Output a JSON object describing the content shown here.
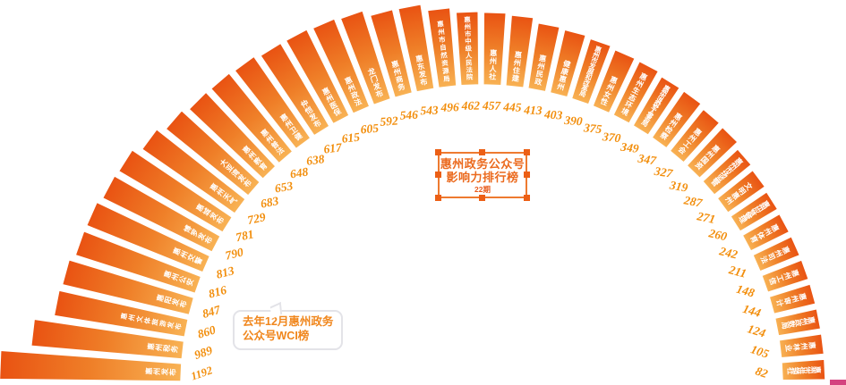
{
  "header": {
    "title_line1": "惠州政务公众号",
    "title_line2": "影响力排行榜",
    "edition": "22期"
  },
  "callout": {
    "line1": "去年12月惠州政务",
    "line2": "公众号WCI榜"
  },
  "colors": {
    "bar_inner": "#F8B254",
    "bar_mid": "#EF7F28",
    "bar_tip": "#E95212",
    "value_text": "#F28E0C",
    "label_text": "#FFFFFF",
    "title_text": "#EB6A1E",
    "frame_border": "#EE7A30",
    "handle": "#EC5F15",
    "callout_text": "#F0861C",
    "callout_border": "#E3E3E8"
  },
  "chart_data": {
    "type": "bar",
    "layout": "radial-fan",
    "title": "惠州政务公众号影响力排行榜",
    "edition": "22期",
    "annotation": "去年12月惠州政务公众号WCI榜",
    "legend_position": "center",
    "grid": false,
    "value_range": [
      0,
      1192
    ],
    "series": [
      {
        "name": "惠州发布",
        "value": 1192
      },
      {
        "name": "惠州税务",
        "value": 989
      },
      {
        "name": "惠州文体旅游发布",
        "value": 860
      },
      {
        "name": "惠阳发布",
        "value": 847
      },
      {
        "name": "惠州公安",
        "value": 816
      },
      {
        "name": "惠州交警",
        "value": 813
      },
      {
        "name": "博罗发布",
        "value": 790
      },
      {
        "name": "惠城发布",
        "value": 781
      },
      {
        "name": "惠州天气",
        "value": 729
      },
      {
        "name": "大亚湾发布",
        "value": 683
      },
      {
        "name": "惠州教育",
        "value": 653
      },
      {
        "name": "惠州普法",
        "value": 648
      },
      {
        "name": "惠州卫健",
        "value": 638
      },
      {
        "name": "仲恺发布",
        "value": 617
      },
      {
        "name": "惠州医保",
        "value": 615
      },
      {
        "name": "惠州政法",
        "value": 605
      },
      {
        "name": "龙门发布",
        "value": 592
      },
      {
        "name": "惠州商务",
        "value": 546
      },
      {
        "name": "惠东发布",
        "value": 543
      },
      {
        "name": "惠州市自然资源局",
        "value": 496
      },
      {
        "name": "惠州市中级人民法院",
        "value": 462
      },
      {
        "name": "惠州人社",
        "value": 457
      },
      {
        "name": "惠州住建",
        "value": 445
      },
      {
        "name": "惠州民政",
        "value": 413
      },
      {
        "name": "健康惠州",
        "value": 403
      },
      {
        "name": "惠州市发展和改革局",
        "value": 390
      },
      {
        "name": "惠州女性",
        "value": 375
      },
      {
        "name": "惠州生态环境",
        "value": 370
      },
      {
        "name": "惠州市退役军人事务局",
        "value": 349
      },
      {
        "name": "惠州检察",
        "value": 347
      },
      {
        "name": "惠州工会",
        "value": 327
      },
      {
        "name": "惠州国资",
        "value": 319
      },
      {
        "name": "惠州市场监管",
        "value": 287
      },
      {
        "name": "文明惠州",
        "value": 271
      },
      {
        "name": "惠州应急管理",
        "value": 260
      },
      {
        "name": "惠州体育",
        "value": 242
      },
      {
        "name": "惠州司法",
        "value": 211
      },
      {
        "name": "惠州工信",
        "value": 148
      },
      {
        "name": "惠州审计",
        "value": 144
      },
      {
        "name": "惠州政数局",
        "value": 124
      },
      {
        "name": "惠州林业",
        "value": 105
      },
      {
        "name": "惠州市供销社",
        "value": 82
      }
    ]
  }
}
